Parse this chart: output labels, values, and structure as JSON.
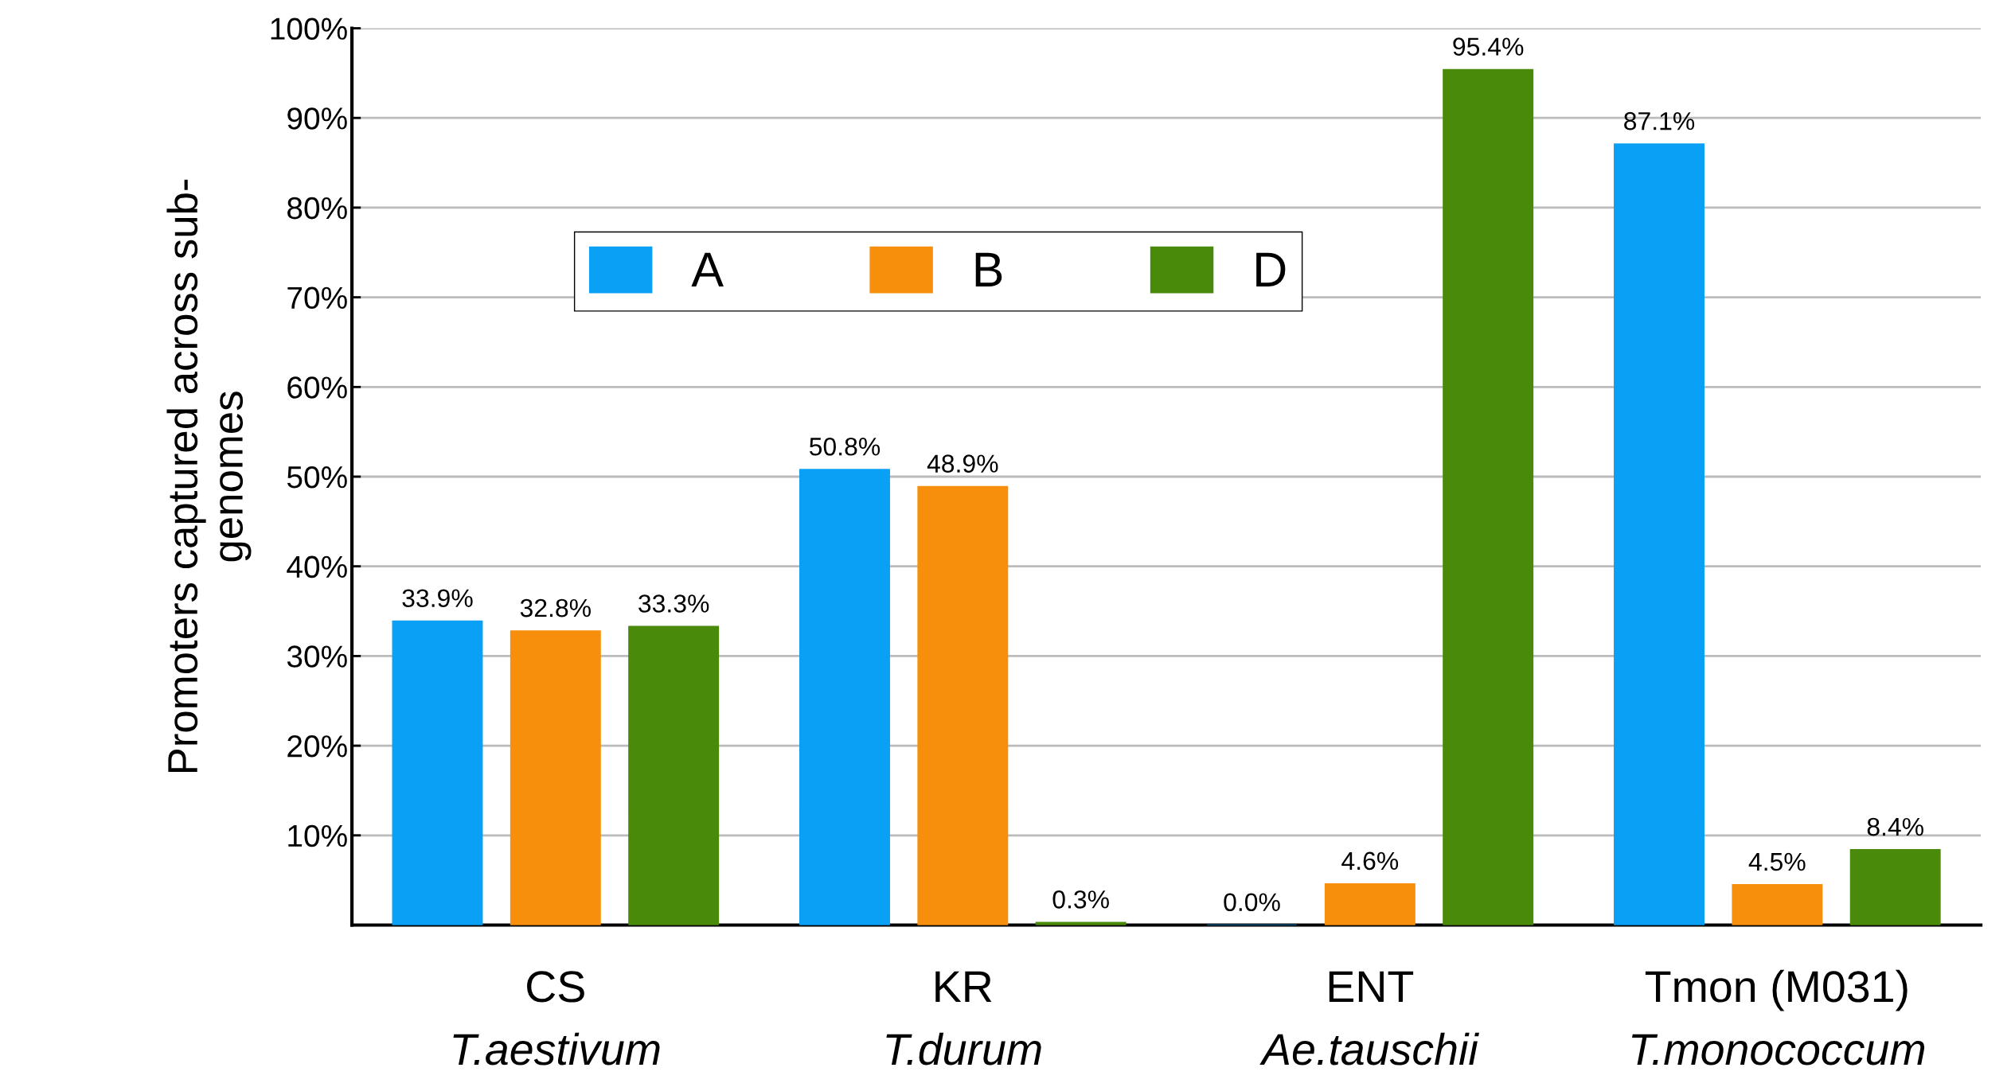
{
  "chart_data": {
    "type": "bar",
    "ylabel": "Promoters captured across sub-\ngenomes",
    "categories": [
      "CS\nT.aestivum",
      "KR\nT.durum",
      "ENT\nAe.tauschii",
      "Tmon (M031)\nT.monococcum"
    ],
    "series": [
      {
        "name": "A",
        "color": "#0aa0f5",
        "values": [
          33.9,
          50.8,
          0.0,
          87.1
        ],
        "value_labels": [
          "33.9%",
          "50.8%",
          "0.0%",
          "87.1%"
        ]
      },
      {
        "name": "B",
        "color": "#f88f0c",
        "values": [
          32.8,
          48.9,
          4.6,
          4.5
        ],
        "value_labels": [
          "32.8%",
          "48.9%",
          "4.6%",
          "4.5%"
        ]
      },
      {
        "name": "D",
        "color": "#4a8a0a",
        "values": [
          33.3,
          0.3,
          95.4,
          8.4
        ],
        "value_labels": [
          "33.3%",
          "0.3%",
          "95.4%",
          "8.4%"
        ]
      }
    ],
    "ylim": [
      0,
      100
    ],
    "yticks": [
      {
        "value": 10,
        "label": "10%"
      },
      {
        "value": 20,
        "label": "20%"
      },
      {
        "value": 30,
        "label": "30%"
      },
      {
        "value": 40,
        "label": "40%"
      },
      {
        "value": 50,
        "label": "50%"
      },
      {
        "value": 60,
        "label": "60%"
      },
      {
        "value": 70,
        "label": "70%"
      },
      {
        "value": 80,
        "label": "80%"
      },
      {
        "value": 90,
        "label": "90%"
      },
      {
        "value": 100,
        "label": "100%"
      }
    ],
    "grid": "y",
    "legend": "top"
  }
}
